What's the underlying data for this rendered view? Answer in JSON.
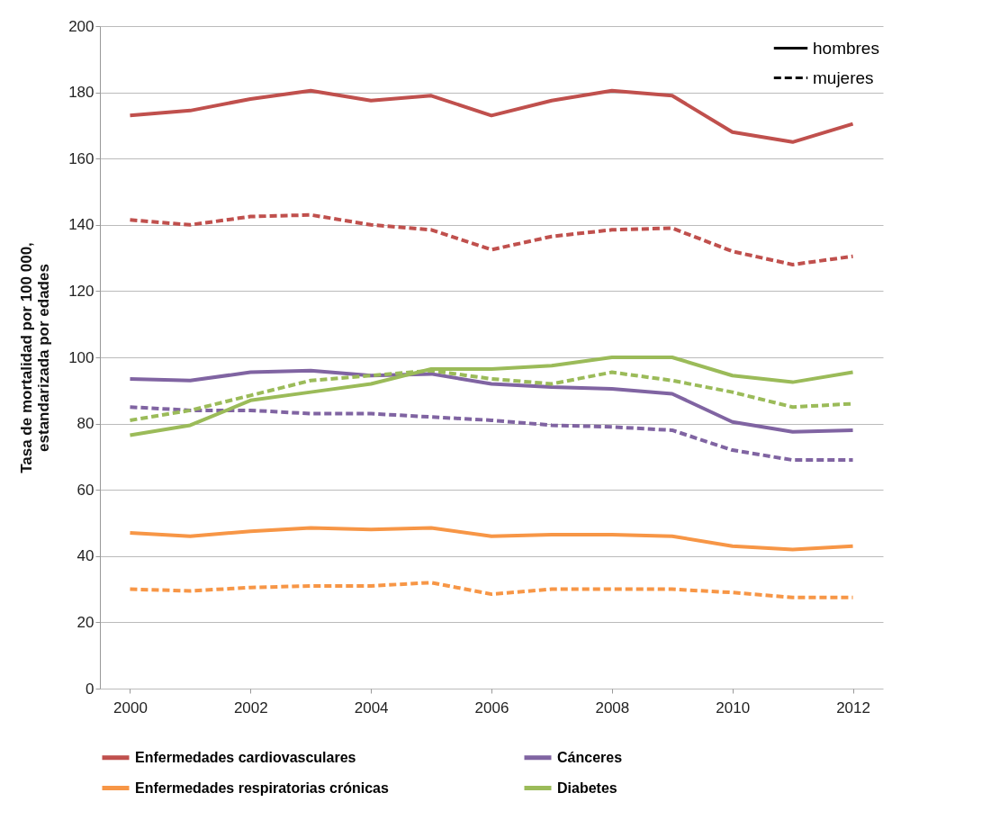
{
  "chart_data": {
    "type": "line",
    "ylabel": "Tasa de mortalidad por 100 000, estandarizada por edades",
    "x": [
      2000,
      2001,
      2002,
      2003,
      2004,
      2005,
      2006,
      2007,
      2008,
      2009,
      2010,
      2011,
      2012
    ],
    "xlim": [
      1999.5,
      2012.5
    ],
    "xticks": [
      2000,
      2002,
      2004,
      2006,
      2008,
      2010,
      2012
    ],
    "ylim": [
      0,
      200
    ],
    "yticks": [
      0,
      20,
      40,
      60,
      80,
      100,
      120,
      140,
      160,
      180,
      200
    ],
    "grid": "y",
    "legend": "bottom",
    "marker": "none",
    "annotations": [
      "hombres",
      "mujeres"
    ],
    "series": [
      {
        "name": "Enfermedades cardiovasculares",
        "color": "#c0504d",
        "line_style": "solid",
        "values": [
          173,
          174.5,
          178,
          180.5,
          177.5,
          179,
          173,
          177.5,
          180.5,
          179,
          168,
          165,
          170.5
        ]
      },
      {
        "color": "#c0504d",
        "line_style": "dashed",
        "values": [
          141.5,
          140,
          142.5,
          143,
          140,
          138.5,
          132.5,
          136.5,
          138.5,
          139,
          132,
          128,
          130.5
        ]
      },
      {
        "name": "Cánceres",
        "color": "#8064a2",
        "line_style": "solid",
        "values": [
          93.5,
          93,
          95.5,
          96,
          94.5,
          95,
          92,
          91,
          90.5,
          89,
          80.5,
          77.5,
          78
        ]
      },
      {
        "color": "#8064a2",
        "line_style": "dashed",
        "values": [
          85,
          84,
          84,
          83,
          83,
          82,
          81,
          79.5,
          79,
          78,
          72,
          69,
          69
        ]
      },
      {
        "name": "Enfermedades respiratorias crónicas",
        "color": "#f79646",
        "line_style": "solid",
        "values": [
          47,
          46,
          47.5,
          48.5,
          48,
          48.5,
          46,
          46.5,
          46.5,
          46,
          43,
          42,
          43
        ]
      },
      {
        "color": "#f79646",
        "line_style": "dashed",
        "values": [
          30,
          29.5,
          30.5,
          31,
          31,
          32,
          28.5,
          30,
          30,
          30,
          29,
          27.5,
          27.5
        ]
      },
      {
        "name": "Diabetes",
        "color": "#9bbb59",
        "line_style": "solid",
        "values": [
          76.5,
          79.5,
          87,
          89.5,
          92,
          96.5,
          96.5,
          97.5,
          100,
          100,
          94.5,
          92.5,
          95.5
        ]
      },
      {
        "color": "#9bbb59",
        "line_style": "dashed",
        "values": [
          81,
          84,
          88.5,
          93,
          94.5,
          96,
          93.5,
          92,
          95.5,
          93,
          89.5,
          85,
          86
        ]
      }
    ]
  }
}
